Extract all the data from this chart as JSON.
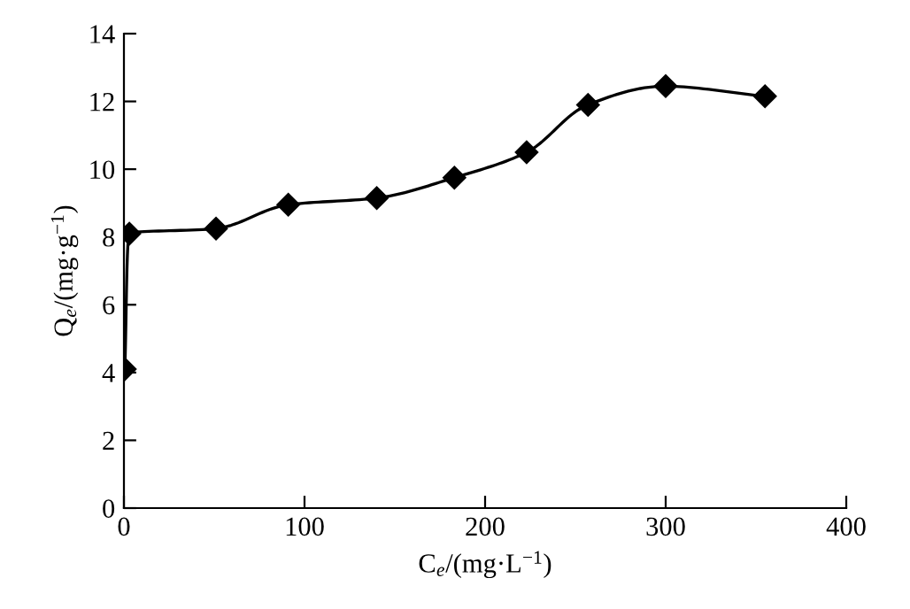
{
  "chart_data": {
    "type": "line",
    "xlabel": "C$_{e}$/(mg·L$^{−1}$)",
    "ylabel": "Q$_{e}$/(mg·g$^{−1}$)",
    "x": [
      0.5,
      3,
      51,
      91,
      140,
      183,
      223,
      257,
      300,
      355
    ],
    "series": [
      {
        "color": "#000000",
        "values": [
          4.1,
          8.1,
          8.25,
          8.95,
          9.15,
          9.75,
          10.5,
          11.9,
          12.45,
          12.15
        ]
      }
    ],
    "xlim": [
      0,
      400
    ],
    "xticks": [
      0,
      100,
      200,
      300,
      400
    ],
    "ylim": [
      0,
      14
    ],
    "yticks": [
      0,
      2,
      4,
      6,
      8,
      10,
      12,
      14
    ],
    "marker": "diamond",
    "line_style": "solid"
  }
}
